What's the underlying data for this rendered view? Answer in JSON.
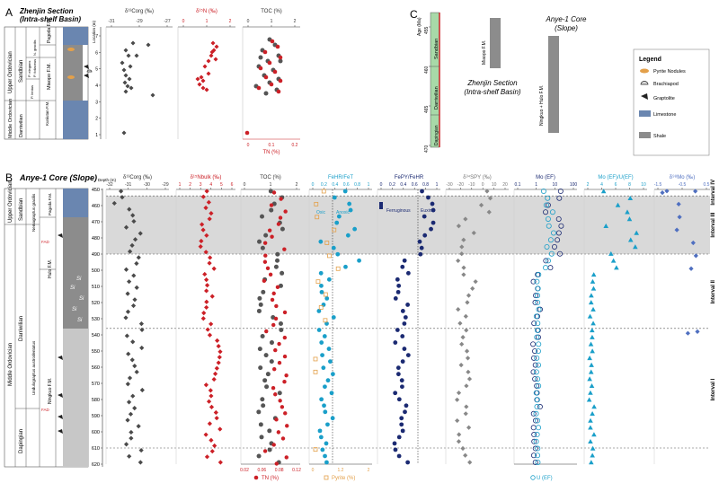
{
  "panel_a": {
    "label": "A",
    "title": "Zhenjin Section",
    "subtitle": "(Intra-shelf Basin)",
    "location_label": "Location (m)",
    "strat": {
      "systems": [
        {
          "label": "Upper Ordovician"
        },
        {
          "label": "Middle Ordovician"
        }
      ],
      "stages": [
        {
          "label": "Sandbian"
        },
        {
          "label": "Darriwilian"
        }
      ],
      "biozones": [
        {
          "label": "N. gracilis"
        },
        {
          "label": "P. elegans"
        },
        {
          "label": "P. foliaceus"
        },
        {
          "label": "P. lentus"
        }
      ],
      "formations": [
        {
          "label": "Pagoda F.M."
        },
        {
          "label": "Miaopo F.M."
        },
        {
          "label": "Kuniutan F.M."
        }
      ]
    },
    "depth_ticks": [
      "7",
      "6",
      "5",
      "4",
      "3",
      "2",
      "1"
    ],
    "column_titles": [
      "δ¹³Corg (‰)",
      "δ¹⁵N (‰)",
      "TOC (%)"
    ],
    "column_ticks": [
      [
        "-31",
        "-29",
        "-27"
      ],
      [
        "0",
        "1",
        "2"
      ],
      [
        "0",
        "1",
        "2"
      ]
    ],
    "bottom_ticks": [
      "0",
      "0.1",
      "0.2"
    ],
    "bottom_title": "TN (%)"
  },
  "panel_b": {
    "label": "B",
    "title": "Anye-1 Core (Slope)",
    "depth_label": "Depth (m)",
    "strat": {
      "systems": [
        {
          "label": "Upper Ordovician"
        },
        {
          "label": "Middle Ordovician"
        }
      ],
      "stages": [
        {
          "label": "Sandbian"
        },
        {
          "label": "Darriwilian"
        },
        {
          "label": "Dapingian"
        }
      ],
      "biozones": [
        {
          "label": "Nemagraptus gracilis"
        },
        {
          "label": "Undulograptus austrodentatus"
        }
      ],
      "formations": [
        {
          "label": "Pagoda F.M."
        },
        {
          "label": "Hulo F.M."
        },
        {
          "label": "Ningkuo F.M."
        }
      ],
      "fad": [
        {
          "label": "FAD"
        },
        {
          "label": "FAD"
        }
      ],
      "si_label": "Si"
    },
    "depth_ticks": [
      "450",
      "460",
      "470",
      "480",
      "490",
      "500",
      "510",
      "520",
      "530",
      "540",
      "550",
      "560",
      "570",
      "580",
      "590",
      "600",
      "610",
      "620"
    ],
    "columns": [
      {
        "title": "δ¹³Corg (‰)",
        "ticks": [
          "-32",
          "-31",
          "-30",
          "-29"
        ]
      },
      {
        "title": "δ¹⁵Nbulk (‰)",
        "ticks": [
          "1",
          "2",
          "3",
          "4",
          "5",
          "6"
        ]
      },
      {
        "title": "TOC (%)",
        "ticks": [
          "0",
          "1",
          "2"
        ]
      },
      {
        "title": "FeHR/FeT",
        "ticks": [
          "0",
          "0.2",
          "0.4",
          "0.6",
          "0.8",
          "1"
        ]
      },
      {
        "title": "FePY/FeHR",
        "ticks": [
          "0",
          "0.2",
          "0.4",
          "0.6",
          "0.8",
          "1"
        ]
      },
      {
        "title": "δ³⁴SPY (‰)",
        "ticks": [
          "-30",
          "-20",
          "-10",
          "0",
          "10",
          "20"
        ]
      },
      {
        "title": "Mo (EF)",
        "ticks": [
          "0.1",
          "1",
          "10",
          "100"
        ]
      },
      {
        "title": "Mo (EF)/U(EF)",
        "ticks": [
          "2",
          "4",
          "6",
          "8",
          "10"
        ]
      },
      {
        "title": "δ⁹⁸Mo (‰)",
        "ticks": [
          "-1.5",
          "-0.5",
          "0.5"
        ]
      }
    ],
    "bottom_axes": [
      {
        "title": "TN (%)",
        "ticks": [
          "0.02",
          "0.06",
          "0.08",
          "0.12"
        ]
      },
      {
        "title": "Pyrite (%)",
        "ticks": [
          "0",
          "1.2",
          "2"
        ]
      },
      {
        "title": "U (EF)",
        "ticks": []
      }
    ],
    "annotations": {
      "oxic": "Oxic",
      "anoxic": "Anoxic",
      "ferruginous": "Ferruginous",
      "euxinic": "Euxinic"
    },
    "intervals": [
      {
        "label": "Interval IV"
      },
      {
        "label": "Interval III"
      },
      {
        "label": "Interval II"
      },
      {
        "label": "Interval I"
      }
    ]
  },
  "panel_c": {
    "label": "C",
    "age_ticks": [
      "455",
      "460",
      "465",
      "470"
    ],
    "age_label": "Age (Ma)",
    "stages": [
      {
        "label": "Sandbian"
      },
      {
        "label": "Darriwilian"
      },
      {
        "label": "Dapingian"
      }
    ],
    "zhenjin": {
      "formation": "Miaopo F.M.",
      "title": "Zhenjin Section",
      "subtitle": "(Intra-shelf Basin)"
    },
    "anye": {
      "formation": "Ningkuo + Hulo F.M.",
      "title": "Anye-1 Core",
      "subtitle": "(Slope)"
    }
  },
  "legend": {
    "title": "Legend",
    "items": [
      {
        "label": "Pyrite Nodules",
        "icon": "ellipse-icon"
      },
      {
        "label": "Brachiapod",
        "icon": "brachiopod-icon"
      },
      {
        "label": "Graptolite",
        "icon": "graptolite-icon"
      },
      {
        "label": "Limestone",
        "icon": "limestone-swatch"
      },
      {
        "label": "Shale",
        "icon": "shale-swatch"
      }
    ]
  },
  "colors": {
    "d13c": "#4a4a4a",
    "red": "#cc2027",
    "cyan": "#1a9fc9",
    "navy": "#1b2a72",
    "pyrite": "#e3a04a",
    "mo_dark": "#1b2a72",
    "light_blue": "#1a9fc9",
    "purple": "#4f6fc0",
    "limestone": "#6a86b0",
    "shale": "#8c8c8c"
  }
}
